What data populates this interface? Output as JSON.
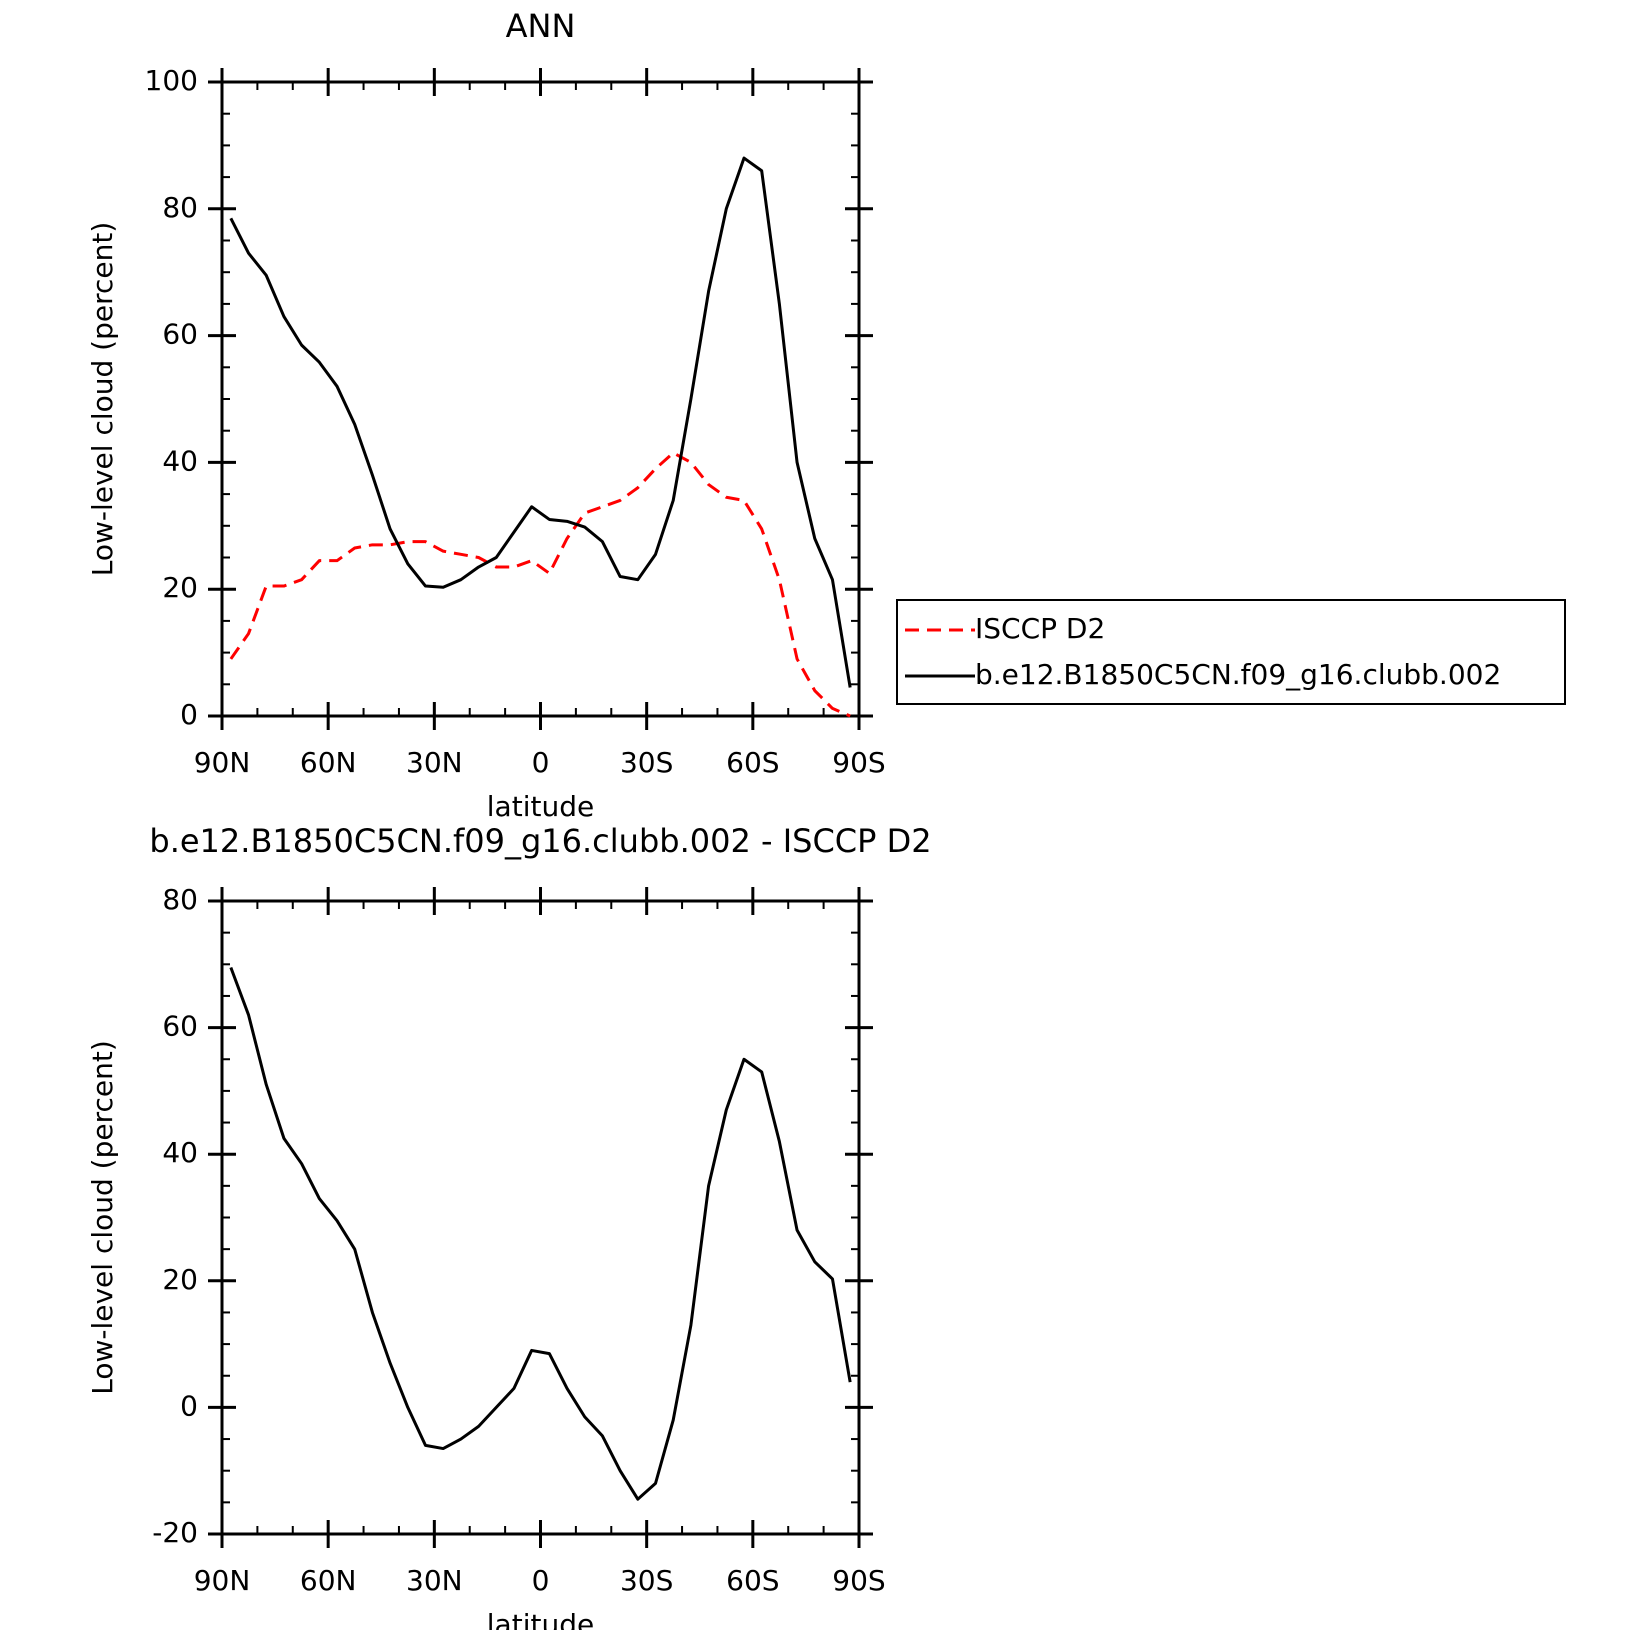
{
  "chart_data": [
    {
      "type": "line",
      "title": "ANN",
      "x_label": "latitude",
      "y_label": "Low-level cloud (percent)",
      "x": [
        87.5,
        82.5,
        77.5,
        72.5,
        67.5,
        62.5,
        57.5,
        52.5,
        47.5,
        42.5,
        37.5,
        32.5,
        27.5,
        22.5,
        17.5,
        12.5,
        7.5,
        2.5,
        -2.5,
        -7.5,
        -12.5,
        -17.5,
        -22.5,
        -27.5,
        -32.5,
        -37.5,
        -42.5,
        -47.5,
        -52.5,
        -57.5,
        -62.5,
        -67.5,
        -72.5,
        -77.5,
        -82.5,
        -87.5
      ],
      "series": [
        {
          "name": "ISCCP D2",
          "color": "#ff0000",
          "dashed": true,
          "values": [
            9,
            13,
            20.5,
            20.5,
            21.5,
            24.5,
            24.5,
            26.5,
            27,
            27,
            27.5,
            27.5,
            26,
            25.5,
            25,
            23.5,
            23.5,
            24.5,
            22.5,
            28,
            32,
            33,
            34,
            36,
            39,
            41.5,
            40,
            36.5,
            34.5,
            34,
            29.5,
            21.5,
            9,
            4,
            1.2,
            0
          ]
        },
        {
          "name": "b.e12.B1850C5CN.f09_g16.clubb.002",
          "color": "#000000",
          "dashed": false,
          "values": [
            78.5,
            73,
            69.5,
            63,
            58.5,
            55.8,
            52,
            46,
            38,
            29.5,
            24,
            20.5,
            20.3,
            21.5,
            23.5,
            25,
            29,
            33,
            31,
            30.7,
            29.8,
            27.5,
            22,
            21.5,
            25.5,
            34,
            50,
            67,
            80,
            88,
            86,
            65,
            40,
            28,
            21.5,
            4.5
          ]
        }
      ],
      "xlim": [
        90,
        -90
      ],
      "xticks": [
        {
          "value": 90,
          "label": "90N"
        },
        {
          "value": 60,
          "label": "60N"
        },
        {
          "value": 30,
          "label": "30N"
        },
        0,
        {
          "value": -30,
          "label": "30S"
        },
        {
          "value": -60,
          "label": "60S"
        },
        {
          "value": -90,
          "label": "90S"
        }
      ],
      "ylim": [
        0,
        100
      ],
      "yticks": [
        0,
        20,
        40,
        60,
        80,
        100
      ],
      "legend": "outside-right"
    },
    {
      "type": "line",
      "title": "b.e12.B1850C5CN.f09_g16.clubb.002 - ISCCP D2",
      "x_label": "latitude",
      "y_label": "Low-level cloud (percent)",
      "x": [
        87.5,
        82.5,
        77.5,
        72.5,
        67.5,
        62.5,
        57.5,
        52.5,
        47.5,
        42.5,
        37.5,
        32.5,
        27.5,
        22.5,
        17.5,
        12.5,
        7.5,
        2.5,
        -2.5,
        -7.5,
        -12.5,
        -17.5,
        -22.5,
        -27.5,
        -32.5,
        -37.5,
        -42.5,
        -47.5,
        -52.5,
        -57.5,
        -62.5,
        -67.5,
        -72.5,
        -77.5,
        -82.5,
        -87.5
      ],
      "color": "#000000",
      "values": [
        69.5,
        62,
        51,
        42.5,
        38.5,
        33,
        29.5,
        25,
        15,
        7,
        0,
        -6,
        -6.5,
        -5,
        -3,
        0,
        3,
        9,
        8.5,
        3,
        -1.5,
        -4.5,
        -10,
        -14.5,
        -12,
        -2,
        13,
        35,
        47,
        55,
        53,
        42,
        28,
        23,
        20.3,
        4
      ],
      "xlim": [
        90,
        -90
      ],
      "xticks": [
        {
          "value": 90,
          "label": "90N"
        },
        {
          "value": 60,
          "label": "60N"
        },
        {
          "value": 30,
          "label": "30N"
        },
        0,
        {
          "value": -30,
          "label": "30S"
        },
        {
          "value": -60,
          "label": "60S"
        },
        {
          "value": -90,
          "label": "90S"
        }
      ],
      "ylim": [
        -20,
        80
      ],
      "yticks": [
        -20,
        0,
        20,
        40,
        60,
        80
      ]
    }
  ]
}
